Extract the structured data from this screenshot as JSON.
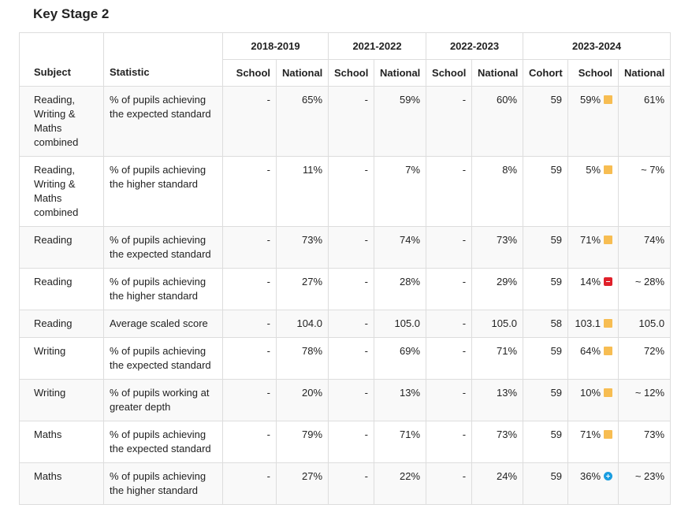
{
  "title": "Key Stage 2",
  "years": [
    "2018-2019",
    "2021-2022",
    "2022-2023",
    "2023-2024"
  ],
  "columns": {
    "subject": "Subject",
    "statistic": "Statistic",
    "school": "School",
    "national": "National",
    "cohort": "Cohort"
  },
  "rows": [
    {
      "subject": "Reading, Writing & Maths combined",
      "statistic": "% of pupils achieving the expected standard",
      "s1819": "-",
      "n1819": "65%",
      "s2122": "-",
      "n2122": "59%",
      "s2223": "-",
      "n2223": "60%",
      "cohort": "59",
      "school": "59%",
      "indicator": "amber",
      "national": "61%"
    },
    {
      "subject": "Reading, Writing & Maths combined",
      "statistic": "% of pupils achieving the higher standard",
      "s1819": "-",
      "n1819": "11%",
      "s2122": "-",
      "n2122": "7%",
      "s2223": "-",
      "n2223": "8%",
      "cohort": "59",
      "school": "5%",
      "indicator": "amber",
      "national": "~ 7%"
    },
    {
      "subject": "Reading",
      "statistic": "% of pupils achieving the expected standard",
      "s1819": "-",
      "n1819": "73%",
      "s2122": "-",
      "n2122": "74%",
      "s2223": "-",
      "n2223": "73%",
      "cohort": "59",
      "school": "71%",
      "indicator": "amber",
      "national": "74%"
    },
    {
      "subject": "Reading",
      "statistic": "% of pupils achieving the higher standard",
      "s1819": "-",
      "n1819": "27%",
      "s2122": "-",
      "n2122": "28%",
      "s2223": "-",
      "n2223": "29%",
      "cohort": "59",
      "school": "14%",
      "indicator": "red",
      "national": "~ 28%"
    },
    {
      "subject": "Reading",
      "statistic": "Average scaled score",
      "s1819": "-",
      "n1819": "104.0",
      "s2122": "-",
      "n2122": "105.0",
      "s2223": "-",
      "n2223": "105.0",
      "cohort": "58",
      "school": "103.1",
      "indicator": "amber",
      "national": "105.0"
    },
    {
      "subject": "Writing",
      "statistic": "% of pupils achieving the expected standard",
      "s1819": "-",
      "n1819": "78%",
      "s2122": "-",
      "n2122": "69%",
      "s2223": "-",
      "n2223": "71%",
      "cohort": "59",
      "school": "64%",
      "indicator": "amber",
      "national": "72%"
    },
    {
      "subject": "Writing",
      "statistic": "% of pupils working at greater depth",
      "s1819": "-",
      "n1819": "20%",
      "s2122": "-",
      "n2122": "13%",
      "s2223": "-",
      "n2223": "13%",
      "cohort": "59",
      "school": "10%",
      "indicator": "amber",
      "national": "~ 12%"
    },
    {
      "subject": "Maths",
      "statistic": "% of pupils achieving the expected standard",
      "s1819": "-",
      "n1819": "79%",
      "s2122": "-",
      "n2122": "71%",
      "s2223": "-",
      "n2223": "73%",
      "cohort": "59",
      "school": "71%",
      "indicator": "amber",
      "national": "73%"
    },
    {
      "subject": "Maths",
      "statistic": "% of pupils achieving the higher standard",
      "s1819": "-",
      "n1819": "27%",
      "s2122": "-",
      "n2122": "22%",
      "s2223": "-",
      "n2223": "24%",
      "cohort": "59",
      "school": "36%",
      "indicator": "blue",
      "national": "~ 23%"
    }
  ],
  "colors": {
    "amber": "#f7bd52",
    "red": "#e0202a",
    "blue": "#1a9de0",
    "border": "#dddddd",
    "stripe": "#f9f9f9"
  }
}
